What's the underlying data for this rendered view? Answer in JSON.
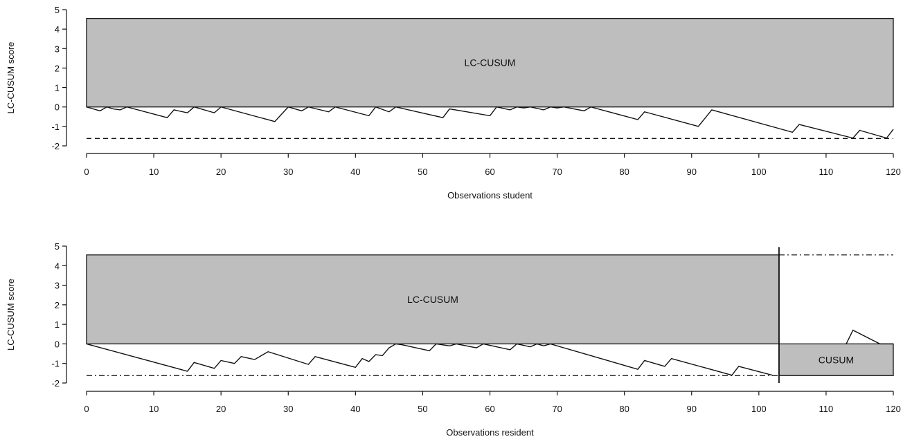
{
  "chart_data": [
    {
      "type": "line",
      "ylabel": "LC-CUSUM score",
      "xlabel": "Observations student",
      "xlim": [
        0,
        120
      ],
      "ylim": [
        -2,
        5
      ],
      "xticks": [
        0,
        10,
        20,
        30,
        40,
        50,
        60,
        70,
        80,
        90,
        100,
        110,
        120
      ],
      "yticks": [
        -2,
        -1,
        0,
        1,
        2,
        3,
        4,
        5
      ],
      "regions": [
        {
          "label": "LC-CUSUM",
          "x": [
            0,
            120
          ],
          "y": [
            0,
            4.55
          ],
          "fill": "#bebebe"
        }
      ],
      "hlines": [
        {
          "y": -1.62,
          "x": [
            0,
            120
          ],
          "style": "dashed"
        }
      ],
      "vlines": [],
      "series": [
        {
          "x": [
            0,
            2,
            3,
            4,
            5,
            6,
            12,
            13,
            15,
            16,
            19,
            20,
            28,
            30,
            32,
            33,
            36,
            37,
            42,
            43,
            45,
            46,
            53,
            54,
            60,
            61,
            63,
            64,
            65,
            66,
            68,
            69,
            70,
            71,
            74,
            75,
            82,
            83,
            91,
            93,
            105,
            106,
            114,
            115,
            119,
            120
          ],
          "y": [
            0,
            -0.2,
            0,
            -0.1,
            -0.15,
            0,
            -0.55,
            -0.15,
            -0.3,
            0,
            -0.3,
            0,
            -0.75,
            0,
            -0.2,
            0,
            -0.25,
            0,
            -0.45,
            0,
            -0.25,
            0,
            -0.55,
            -0.1,
            -0.45,
            0,
            -0.15,
            0,
            -0.05,
            0,
            -0.15,
            0,
            -0.05,
            0,
            -0.2,
            0,
            -0.65,
            -0.25,
            -1.0,
            -0.15,
            -1.3,
            -0.9,
            -1.6,
            -1.2,
            -1.6,
            -1.15
          ]
        }
      ]
    },
    {
      "type": "line",
      "ylabel": "LC-CUSUM score",
      "xlabel": "Observations resident",
      "xlim": [
        0,
        120
      ],
      "ylim": [
        -2,
        5
      ],
      "xticks": [
        0,
        10,
        20,
        30,
        40,
        50,
        60,
        70,
        80,
        90,
        100,
        110,
        120
      ],
      "yticks": [
        -2,
        -1,
        0,
        1,
        2,
        3,
        4,
        5
      ],
      "regions": [
        {
          "label": "LC-CUSUM",
          "x": [
            0,
            103
          ],
          "y": [
            0,
            4.55
          ],
          "fill": "#bebebe"
        },
        {
          "label": "CUSUM",
          "x": [
            103,
            120
          ],
          "y": [
            -1.62,
            0
          ],
          "fill": "#bebebe"
        }
      ],
      "hlines": [
        {
          "y": -1.62,
          "x": [
            0,
            103
          ],
          "style": "dashdot"
        },
        {
          "y": 4.55,
          "x": [
            103,
            120
          ],
          "style": "dashdot"
        }
      ],
      "vlines": [
        {
          "x": 103,
          "y": [
            -2,
            4.95
          ],
          "style": "solid"
        }
      ],
      "series": [
        {
          "x": [
            0,
            15,
            16,
            19,
            20,
            22,
            23,
            25,
            26,
            27,
            33,
            34,
            40,
            41,
            42,
            43,
            44,
            45,
            46,
            47,
            51,
            52,
            54,
            55,
            58,
            59,
            63,
            64,
            66,
            67,
            68,
            69,
            82,
            83,
            86,
            87,
            96,
            97,
            102
          ],
          "y": [
            0,
            -1.4,
            -0.95,
            -1.25,
            -0.85,
            -1.0,
            -0.65,
            -0.8,
            -0.6,
            -0.4,
            -1.05,
            -0.65,
            -1.2,
            -0.75,
            -0.9,
            -0.55,
            -0.6,
            -0.2,
            0,
            -0.05,
            -0.35,
            0,
            -0.1,
            0,
            -0.2,
            0,
            -0.3,
            0,
            -0.15,
            0,
            -0.1,
            0,
            -1.3,
            -0.85,
            -1.15,
            -0.75,
            -1.6,
            -1.15,
            -1.6
          ]
        },
        {
          "x": [
            113,
            114,
            118,
            120
          ],
          "y": [
            0,
            0.7,
            0,
            0
          ]
        }
      ]
    }
  ]
}
